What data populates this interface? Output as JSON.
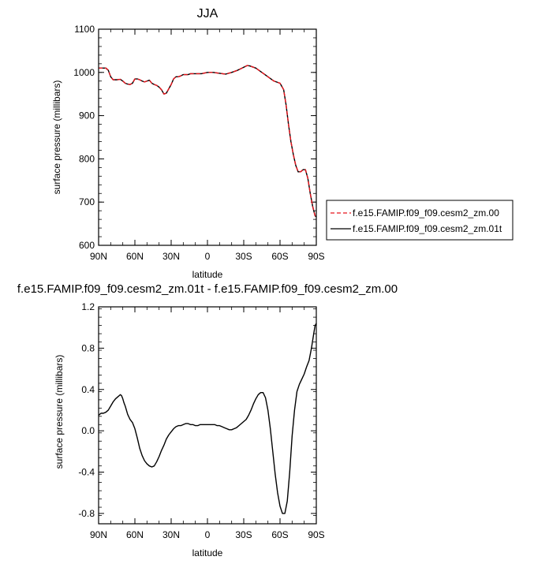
{
  "chart_data": [
    {
      "type": "line",
      "title": "JJA",
      "xlabel": "latitude",
      "ylabel": "surface pressure (millibars)",
      "xlim": [
        -90,
        90
      ],
      "ylim": [
        600,
        1100
      ],
      "xticks": [
        -90,
        -60,
        -30,
        0,
        30,
        60,
        90
      ],
      "xticklabels": [
        "90N",
        "60N",
        "30N",
        "0",
        "30S",
        "60S",
        "90S"
      ],
      "yticks": [
        600,
        700,
        800,
        900,
        1000,
        1100
      ],
      "yticklabels": [
        "600",
        "700",
        "800",
        "900",
        "1000",
        "1100"
      ],
      "legend": "right",
      "series": [
        {
          "name": "f.e15.FAMIP.f09_f09.cesm2_zm.00",
          "color": "#e8141c",
          "dash": "dashed",
          "x": [
            -90,
            -84,
            -82,
            -80,
            -78,
            -75,
            -72,
            -70,
            -68,
            -66,
            -64,
            -62,
            -60,
            -58,
            -56,
            -54,
            -52,
            -50,
            -48,
            -46,
            -44,
            -42,
            -40,
            -38,
            -36,
            -34,
            -32,
            -30,
            -28,
            -26,
            -24,
            -22,
            -20,
            -18,
            -16,
            -14,
            -12,
            -10,
            -5,
            0,
            5,
            10,
            15,
            20,
            25,
            30,
            33,
            35,
            40,
            45,
            50,
            55,
            60,
            63,
            65,
            67,
            69,
            71,
            73,
            75,
            77,
            79,
            81,
            83,
            85,
            87,
            89,
            90
          ],
          "y": [
            1010,
            1010,
            1005,
            990,
            983,
            983,
            984,
            980,
            975,
            973,
            972,
            975,
            985,
            985,
            983,
            980,
            978,
            980,
            982,
            975,
            972,
            970,
            966,
            960,
            950,
            952,
            962,
            972,
            985,
            990,
            990,
            992,
            995,
            995,
            995,
            997,
            997,
            997,
            997,
            1000,
            1000,
            998,
            996,
            1000,
            1005,
            1012,
            1016,
            1015,
            1010,
            1000,
            990,
            980,
            975,
            960,
            925,
            880,
            840,
            810,
            785,
            770,
            770,
            775,
            775,
            755,
            720,
            690,
            668,
            666
          ]
        },
        {
          "name": "f.e15.FAMIP.f09_f09.cesm2_zm.01t",
          "color": "#000000",
          "dash": "solid",
          "x": [
            -90,
            -84,
            -82,
            -80,
            -78,
            -75,
            -72,
            -70,
            -68,
            -66,
            -64,
            -62,
            -60,
            -58,
            -56,
            -54,
            -52,
            -50,
            -48,
            -46,
            -44,
            -42,
            -40,
            -38,
            -36,
            -34,
            -32,
            -30,
            -28,
            -26,
            -24,
            -22,
            -20,
            -18,
            -16,
            -14,
            -12,
            -10,
            -5,
            0,
            5,
            10,
            15,
            20,
            25,
            30,
            33,
            35,
            40,
            45,
            50,
            55,
            60,
            63,
            65,
            67,
            69,
            71,
            73,
            75,
            77,
            79,
            81,
            83,
            85,
            87,
            89,
            90
          ],
          "y": [
            1010,
            1010,
            1005,
            990,
            983,
            983,
            984,
            980,
            975,
            973,
            972,
            975,
            985,
            985,
            983,
            980,
            978,
            980,
            982,
            975,
            972,
            970,
            966,
            960,
            950,
            952,
            962,
            972,
            985,
            990,
            990,
            992,
            995,
            995,
            995,
            997,
            997,
            997,
            997,
            1000,
            1000,
            998,
            996,
            1000,
            1005,
            1012,
            1016,
            1015,
            1010,
            1000,
            990,
            980,
            975,
            960,
            925,
            880,
            840,
            810,
            785,
            770,
            770,
            775,
            775,
            755,
            720,
            690,
            668,
            666
          ]
        }
      ]
    },
    {
      "type": "line",
      "title": "f.e15.FAMIP.f09_f09.cesm2_zm.01t - f.e15.FAMIP.f09_f09.cesm2_zm.00",
      "xlabel": "latitude",
      "ylabel": "surface pressure (millibars)",
      "xlim": [
        -90,
        90
      ],
      "ylim": [
        -0.9,
        1.2
      ],
      "xticks": [
        -90,
        -60,
        -30,
        0,
        30,
        60,
        90
      ],
      "xticklabels": [
        "90N",
        "60N",
        "30N",
        "0",
        "30S",
        "60S",
        "90S"
      ],
      "yticks": [
        -0.8,
        -0.4,
        0.0,
        0.4,
        0.8,
        1.2
      ],
      "yticklabels": [
        "-0.8",
        "-0.4",
        "0.0",
        "0.4",
        "0.8",
        "1.2"
      ],
      "series": [
        {
          "color": "#000000",
          "dash": "solid",
          "x": [
            -90,
            -88,
            -86,
            -84,
            -82,
            -80,
            -78,
            -76,
            -74,
            -73,
            -72,
            -71,
            -70,
            -69,
            -68,
            -66,
            -64,
            -62,
            -60,
            -58,
            -56,
            -54,
            -52,
            -50,
            -48,
            -46,
            -44,
            -42,
            -40,
            -38,
            -36,
            -34,
            -32,
            -30,
            -28,
            -26,
            -24,
            -22,
            -20,
            -18,
            -16,
            -14,
            -12,
            -10,
            -8,
            -6,
            -4,
            -2,
            0,
            2,
            4,
            6,
            8,
            10,
            12,
            14,
            16,
            18,
            20,
            22,
            24,
            26,
            28,
            30,
            32,
            34,
            36,
            38,
            40,
            42,
            44,
            46,
            48,
            50,
            52,
            54,
            56,
            58,
            60,
            62,
            64,
            66,
            68,
            70,
            72,
            74,
            76,
            78,
            80,
            82,
            84,
            86,
            88,
            89,
            90
          ],
          "y": [
            0.15,
            0.17,
            0.17,
            0.18,
            0.2,
            0.24,
            0.28,
            0.31,
            0.33,
            0.34,
            0.35,
            0.34,
            0.31,
            0.27,
            0.24,
            0.16,
            0.11,
            0.08,
            0.02,
            -0.07,
            -0.17,
            -0.24,
            -0.29,
            -0.32,
            -0.34,
            -0.35,
            -0.34,
            -0.3,
            -0.25,
            -0.19,
            -0.14,
            -0.08,
            -0.04,
            -0.01,
            0.02,
            0.04,
            0.05,
            0.05,
            0.06,
            0.07,
            0.07,
            0.06,
            0.06,
            0.05,
            0.05,
            0.06,
            0.06,
            0.06,
            0.06,
            0.06,
            0.06,
            0.06,
            0.05,
            0.05,
            0.04,
            0.03,
            0.02,
            0.01,
            0.01,
            0.02,
            0.03,
            0.05,
            0.07,
            0.09,
            0.11,
            0.15,
            0.2,
            0.26,
            0.31,
            0.35,
            0.37,
            0.37,
            0.32,
            0.2,
            0.02,
            -0.2,
            -0.42,
            -0.6,
            -0.73,
            -0.8,
            -0.8,
            -0.68,
            -0.4,
            -0.05,
            0.2,
            0.38,
            0.45,
            0.5,
            0.55,
            0.62,
            0.68,
            0.8,
            0.95,
            1.02,
            1.04
          ]
        }
      ]
    }
  ]
}
